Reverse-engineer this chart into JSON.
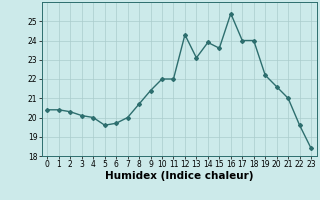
{
  "xlabel": "Humidex (Indice chaleur)",
  "x": [
    0,
    1,
    2,
    3,
    4,
    5,
    6,
    7,
    8,
    9,
    10,
    11,
    12,
    13,
    14,
    15,
    16,
    17,
    18,
    19,
    20,
    21,
    22,
    23
  ],
  "y": [
    20.4,
    20.4,
    20.3,
    20.1,
    20.0,
    19.6,
    19.7,
    20.0,
    20.7,
    21.4,
    22.0,
    22.0,
    24.3,
    23.1,
    23.9,
    23.6,
    25.4,
    24.0,
    24.0,
    22.2,
    21.6,
    21.0,
    19.6,
    18.4
  ],
  "line_color": "#2d6e6e",
  "marker": "D",
  "marker_size": 2.0,
  "line_width": 1.0,
  "bg_color": "#cceaea",
  "grid_color": "#aacccc",
  "ylim": [
    18,
    26
  ],
  "yticks": [
    18,
    19,
    20,
    21,
    22,
    23,
    24,
    25
  ],
  "xlim": [
    -0.5,
    23.5
  ],
  "xticks": [
    0,
    1,
    2,
    3,
    4,
    5,
    6,
    7,
    8,
    9,
    10,
    11,
    12,
    13,
    14,
    15,
    16,
    17,
    18,
    19,
    20,
    21,
    22,
    23
  ],
  "tick_fontsize": 5.5,
  "xlabel_fontsize": 7.5
}
